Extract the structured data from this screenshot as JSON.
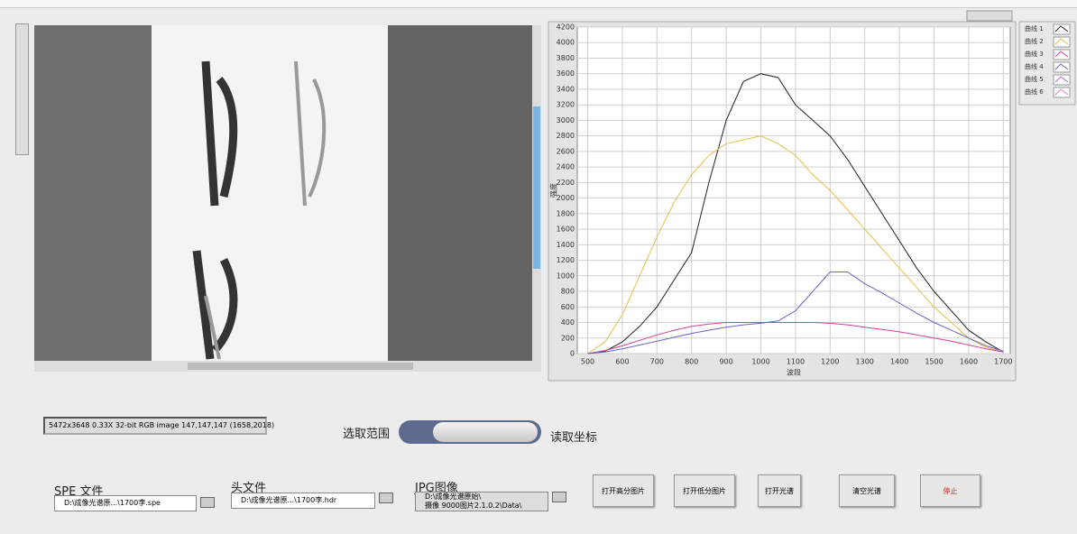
{
  "chart_data": {
    "type": "line",
    "xlabel": "波段",
    "ylabel": "强度",
    "x": [
      500,
      550,
      600,
      650,
      700,
      750,
      800,
      850,
      900,
      950,
      1000,
      1050,
      1100,
      1150,
      1200,
      1250,
      1300,
      1350,
      1400,
      1450,
      1500,
      1550,
      1600,
      1650,
      1700
    ],
    "series": [
      {
        "name": "曲线 1",
        "color": "#222222",
        "values": [
          0,
          30,
          150,
          350,
          600,
          950,
          1300,
          2200,
          3000,
          3500,
          3600,
          3550,
          3200,
          3000,
          2800,
          2500,
          2150,
          1800,
          1450,
          1100,
          800,
          550,
          300,
          150,
          20
        ]
      },
      {
        "name": "曲线 2",
        "color": "#e3c04a",
        "values": [
          0,
          150,
          500,
          1000,
          1500,
          1950,
          2300,
          2550,
          2700,
          2750,
          2800,
          2700,
          2550,
          2300,
          2100,
          1850,
          1600,
          1350,
          1100,
          850,
          600,
          400,
          200,
          80,
          20
        ]
      },
      {
        "name": "曲线 3",
        "color": "#d0409c",
        "values": [
          0,
          40,
          100,
          170,
          240,
          300,
          350,
          380,
          400,
          400,
          400,
          400,
          400,
          400,
          390,
          370,
          340,
          310,
          280,
          240,
          200,
          160,
          110,
          60,
          20
        ]
      },
      {
        "name": "曲线 4",
        "color": "#6a64c4",
        "values": [
          0,
          20,
          60,
          110,
          160,
          210,
          260,
          300,
          340,
          370,
          390,
          420,
          550,
          800,
          1050,
          1050,
          900,
          780,
          650,
          520,
          400,
          300,
          200,
          100,
          30
        ]
      },
      {
        "name": "曲线 5",
        "color": "#a070c0",
        "values": [
          null,
          null,
          null,
          null,
          null,
          null,
          null,
          null,
          null,
          null,
          null,
          null,
          null,
          null,
          null,
          null,
          null,
          null,
          null,
          null,
          null,
          null,
          null,
          null,
          null
        ]
      },
      {
        "name": "曲线 6",
        "color": "#e080c0",
        "values": [
          null,
          null,
          null,
          null,
          null,
          null,
          null,
          null,
          null,
          null,
          null,
          null,
          null,
          null,
          null,
          null,
          null,
          null,
          null,
          null,
          null,
          null,
          null,
          null,
          null
        ]
      }
    ],
    "xlim": [
      470,
      1720
    ],
    "xticks": [
      500,
      600,
      700,
      800,
      900,
      1000,
      1100,
      1200,
      1300,
      1400,
      1500,
      1600,
      1700
    ],
    "ylim": [
      0,
      4200
    ],
    "yticks": [
      0,
      200,
      400,
      600,
      800,
      1000,
      1200,
      1400,
      1600,
      1800,
      2000,
      2200,
      2400,
      2600,
      2800,
      3000,
      3200,
      3400,
      3600,
      3800,
      4000,
      4200
    ],
    "grid": true,
    "legend": "outside-right"
  },
  "ui": {
    "status": "5472x3648 0.33X 32-bit RGB image 147,147,147    (1658,2018)",
    "toggle_left": "选取范围",
    "toggle_right": "读取坐标",
    "spe_label": "SPE 文件",
    "spe_path": "D:\\成像光谱原...\\1700李.spe",
    "hdr_label": "头文件",
    "hdr_path": "D:\\成像光谱原...\\1700李.hdr",
    "jpg_label": "JPG图像",
    "jpg_path_1": "D:\\成像光谱原始\\",
    "jpg_path_2": "摄像 9000图片2.1.0.2\\Data\\",
    "buttons": [
      "打开高分图片",
      "打开低分图片",
      "打开光谱",
      "清空光谱",
      "停止"
    ]
  }
}
